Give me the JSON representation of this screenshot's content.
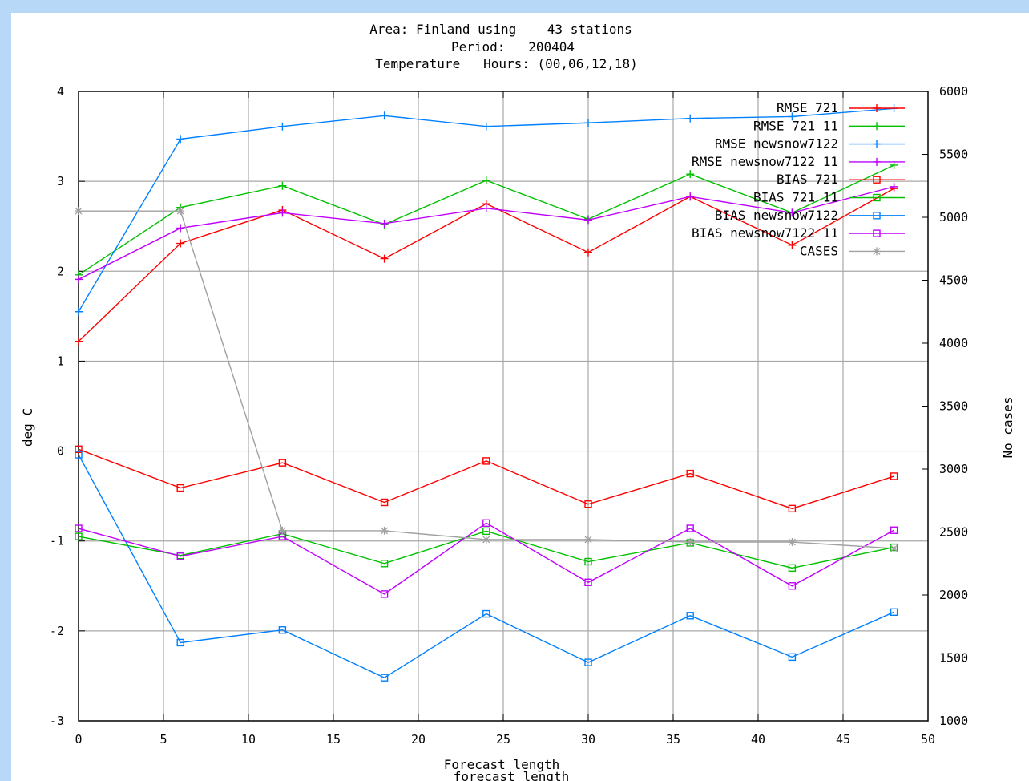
{
  "chart_data": {
    "type": "line",
    "title": [
      "Area: Finland using    43 stations",
      "Period:   200404",
      "Temperature   Hours: (00,06,12,18)"
    ],
    "xlabel": "Forecast length",
    "xlabel_ghost": "forecast length",
    "ylabel": "deg C",
    "y2label": "No cases",
    "xlim": [
      0,
      50
    ],
    "ylim": [
      -3,
      4
    ],
    "y2lim": [
      1000,
      6000
    ],
    "grid": true,
    "legend_position": "top-right",
    "x_ticks": [
      "0",
      "5",
      "10",
      "15",
      "20",
      "25",
      "30",
      "35",
      "40",
      "45",
      "50"
    ],
    "y_ticks": [
      "-3",
      "-2",
      "-1",
      "0",
      "1",
      "2",
      "3",
      "4"
    ],
    "y2_ticks": [
      "1000",
      "1500",
      "2000",
      "2500",
      "3000",
      "3500",
      "4000",
      "4500",
      "5000",
      "5500",
      "6000"
    ],
    "x": [
      0,
      6,
      12,
      18,
      24,
      30,
      36,
      42,
      48
    ],
    "series": [
      {
        "name": "RMSE 721",
        "color": "#ff0000",
        "marker": "plus",
        "axis": "y1",
        "values": [
          1.22,
          2.31,
          2.68,
          2.14,
          2.75,
          2.21,
          2.83,
          2.29,
          2.92
        ]
      },
      {
        "name": "RMSE 721 11",
        "color": "#00c000",
        "marker": "plus",
        "axis": "y1",
        "values": [
          1.96,
          2.71,
          2.95,
          2.52,
          3.01,
          2.58,
          3.08,
          2.65,
          3.18
        ]
      },
      {
        "name": "RMSE newsnow7122",
        "color": "#0080ff",
        "marker": "plus",
        "axis": "y1",
        "values": [
          1.55,
          3.47,
          3.61,
          3.73,
          3.61,
          3.65,
          3.7,
          3.72,
          3.81
        ]
      },
      {
        "name": "RMSE newsnow7122 11",
        "color": "#c000ff",
        "marker": "plus",
        "axis": "y1",
        "values": [
          1.91,
          2.48,
          2.65,
          2.53,
          2.7,
          2.57,
          2.83,
          2.65,
          2.94
        ]
      },
      {
        "name": "BIAS 721",
        "color": "#ff0000",
        "marker": "square",
        "axis": "y1",
        "values": [
          0.02,
          -0.41,
          -0.13,
          -0.57,
          -0.11,
          -0.59,
          -0.25,
          -0.64,
          -0.28
        ]
      },
      {
        "name": "BIAS 721 11",
        "color": "#00c000",
        "marker": "square",
        "axis": "y1",
        "values": [
          -0.95,
          -1.16,
          -0.92,
          -1.25,
          -0.89,
          -1.23,
          -1.02,
          -1.3,
          -1.07
        ]
      },
      {
        "name": "BIAS newsnow7122",
        "color": "#0080ff",
        "marker": "square",
        "axis": "y1",
        "values": [
          -0.04,
          -2.13,
          -1.99,
          -2.52,
          -1.81,
          -2.35,
          -1.83,
          -2.29,
          -1.79
        ]
      },
      {
        "name": "BIAS newsnow7122 11",
        "color": "#c000ff",
        "marker": "square",
        "axis": "y1",
        "values": [
          -0.86,
          -1.17,
          -0.95,
          -1.59,
          -0.8,
          -1.46,
          -0.86,
          -1.5,
          -0.88
        ]
      },
      {
        "name": "CASES",
        "color": "#a0a0a0",
        "marker": "star",
        "axis": "y2",
        "values": [
          5050,
          5050,
          2510,
          2510,
          2440,
          2440,
          2420,
          2420,
          2370
        ]
      }
    ]
  }
}
